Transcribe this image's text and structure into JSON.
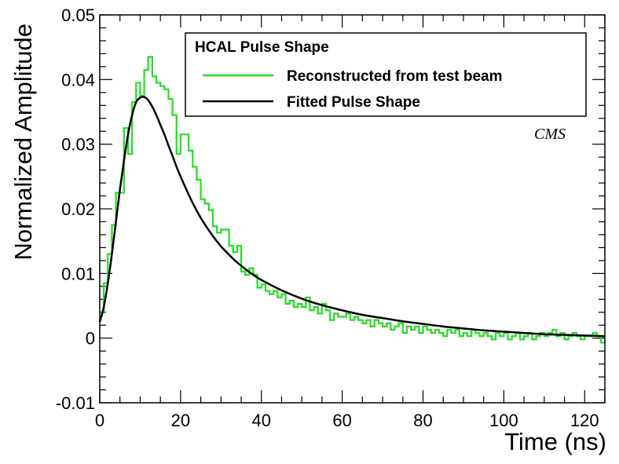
{
  "chart_data": {
    "type": "line",
    "title": "",
    "xlabel": "Time (ns)",
    "ylabel": "Normalized Amplitude",
    "xlim": [
      0,
      125
    ],
    "ylim": [
      -0.01,
      0.05
    ],
    "x_ticks": [
      0,
      20,
      40,
      60,
      80,
      100,
      120
    ],
    "x_tick_labels": [
      "0",
      "20",
      "40",
      "60",
      "80",
      "100",
      "120"
    ],
    "y_ticks": [
      -0.01,
      0,
      0.01,
      0.02,
      0.03,
      0.04,
      0.05
    ],
    "y_tick_labels": [
      "-0.01",
      "0",
      "0.01",
      "0.02",
      "0.03",
      "0.04",
      "0.05"
    ],
    "legend": {
      "title": "HCAL Pulse Shape",
      "position": "top-right",
      "entries": [
        {
          "label": "Reconstructed from test beam",
          "color": "#22dd22"
        },
        {
          "label": "Fitted Pulse Shape",
          "color": "#000000"
        }
      ]
    },
    "annotation": "CMS",
    "series": [
      {
        "name": "Reconstructed from test beam",
        "style": "histogram-step",
        "color": "#22dd22",
        "bin_width": 1,
        "x_start": 0,
        "values": [
          0.004,
          0.0085,
          0.013,
          0.0175,
          0.0225,
          0.0225,
          0.0325,
          0.0285,
          0.0365,
          0.0395,
          0.0375,
          0.0415,
          0.0435,
          0.0405,
          0.0395,
          0.039,
          0.0385,
          0.037,
          0.0345,
          0.0285,
          0.0315,
          0.0315,
          0.029,
          0.0265,
          0.0245,
          0.0215,
          0.0208,
          0.0198,
          0.0173,
          0.0163,
          0.0168,
          0.0168,
          0.0143,
          0.0133,
          0.0143,
          0.0103,
          0.0098,
          0.0108,
          0.0098,
          0.0078,
          0.0083,
          0.0073,
          0.0068,
          0.0073,
          0.0063,
          0.0068,
          0.0053,
          0.0058,
          0.0048,
          0.0053,
          0.0048,
          0.0063,
          0.0043,
          0.0048,
          0.0038,
          0.0053,
          0.0043,
          0.0028,
          0.0038,
          0.0033,
          0.0033,
          0.0038,
          0.0028,
          0.0033,
          0.0028,
          0.0023,
          0.0028,
          0.0018,
          0.0028,
          0.0023,
          0.0018,
          0.0023,
          0.0013,
          0.0018,
          0.0023,
          0.0008,
          0.0018,
          0.0013,
          0.0018,
          0.0008,
          0.0018,
          0.0013,
          0.0008,
          0.0013,
          0.0008,
          0.0003,
          0.0013,
          0.0008,
          0.0013,
          0.0003,
          0.0008,
          0.0003,
          0.0013,
          0.0008,
          0.0003,
          0.0008,
          0.0003,
          -0.0002,
          0.0008,
          0.0003,
          0.0008,
          -0.0002,
          0.0003,
          0.0008,
          -0.0002,
          0.0003,
          0.0008,
          -0.0002,
          0.0003,
          0.0008,
          0.0003,
          0.0008,
          0.0013,
          0.0003,
          0.0008,
          -0.0002,
          0.0003,
          0.0008,
          0.0003,
          -0.0002,
          0.0003,
          0.0003,
          0.0008,
          0.0003,
          -0.0007
        ]
      },
      {
        "name": "Fitted Pulse Shape",
        "style": "smooth-line",
        "color": "#000000",
        "x": [
          0,
          1,
          2,
          3,
          4,
          5,
          6,
          7,
          8,
          9,
          10,
          11,
          12,
          13,
          14,
          15,
          16,
          17,
          18,
          19,
          20,
          22,
          24,
          26,
          28,
          30,
          32,
          34,
          36,
          38,
          40,
          45,
          50,
          55,
          60,
          65,
          70,
          75,
          80,
          85,
          90,
          95,
          100,
          105,
          110,
          115,
          120,
          125
        ],
        "y": [
          0.0025,
          0.0048,
          0.0085,
          0.013,
          0.018,
          0.023,
          0.0275,
          0.0315,
          0.0345,
          0.0365,
          0.0372,
          0.0373,
          0.0368,
          0.0358,
          0.0345,
          0.033,
          0.0315,
          0.0298,
          0.0282,
          0.0265,
          0.025,
          0.0222,
          0.0197,
          0.0176,
          0.0158,
          0.0142,
          0.0129,
          0.0117,
          0.0107,
          0.0098,
          0.009,
          0.0074,
          0.0061,
          0.0051,
          0.0043,
          0.0036,
          0.0031,
          0.0026,
          0.0022,
          0.0018,
          0.0015,
          0.0012,
          0.001,
          0.0008,
          0.0006,
          0.0005,
          0.0004,
          0.0003
        ]
      }
    ]
  }
}
